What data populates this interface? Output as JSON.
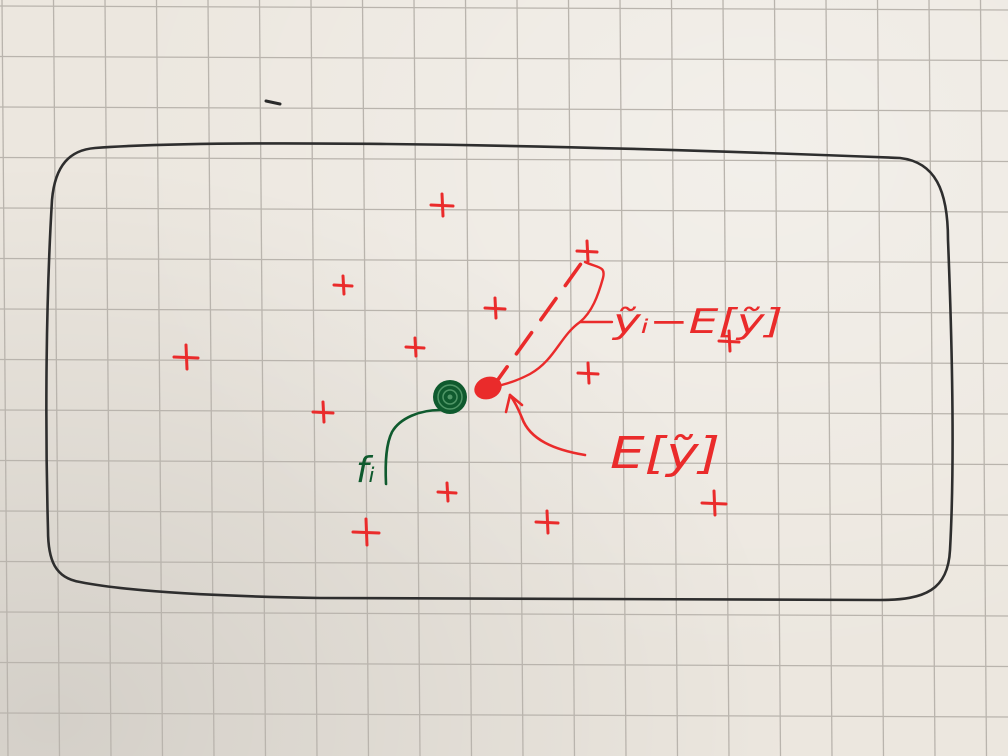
{
  "labels": {
    "deviation": "ỹᵢ−E[ỹ]",
    "expectation": "E[ỹ]",
    "function_value": "fᵢ"
  },
  "colors": {
    "paper": "#ece7df",
    "grid": "#b9b4ad",
    "boundary": "#2e2e2e",
    "samples": "#ea2b2b",
    "function_point": "#0f5a2e"
  },
  "icons": {
    "sample_marker": "plus-sign",
    "expectation_marker": "filled-dot",
    "function_marker": "spiral-dot"
  }
}
